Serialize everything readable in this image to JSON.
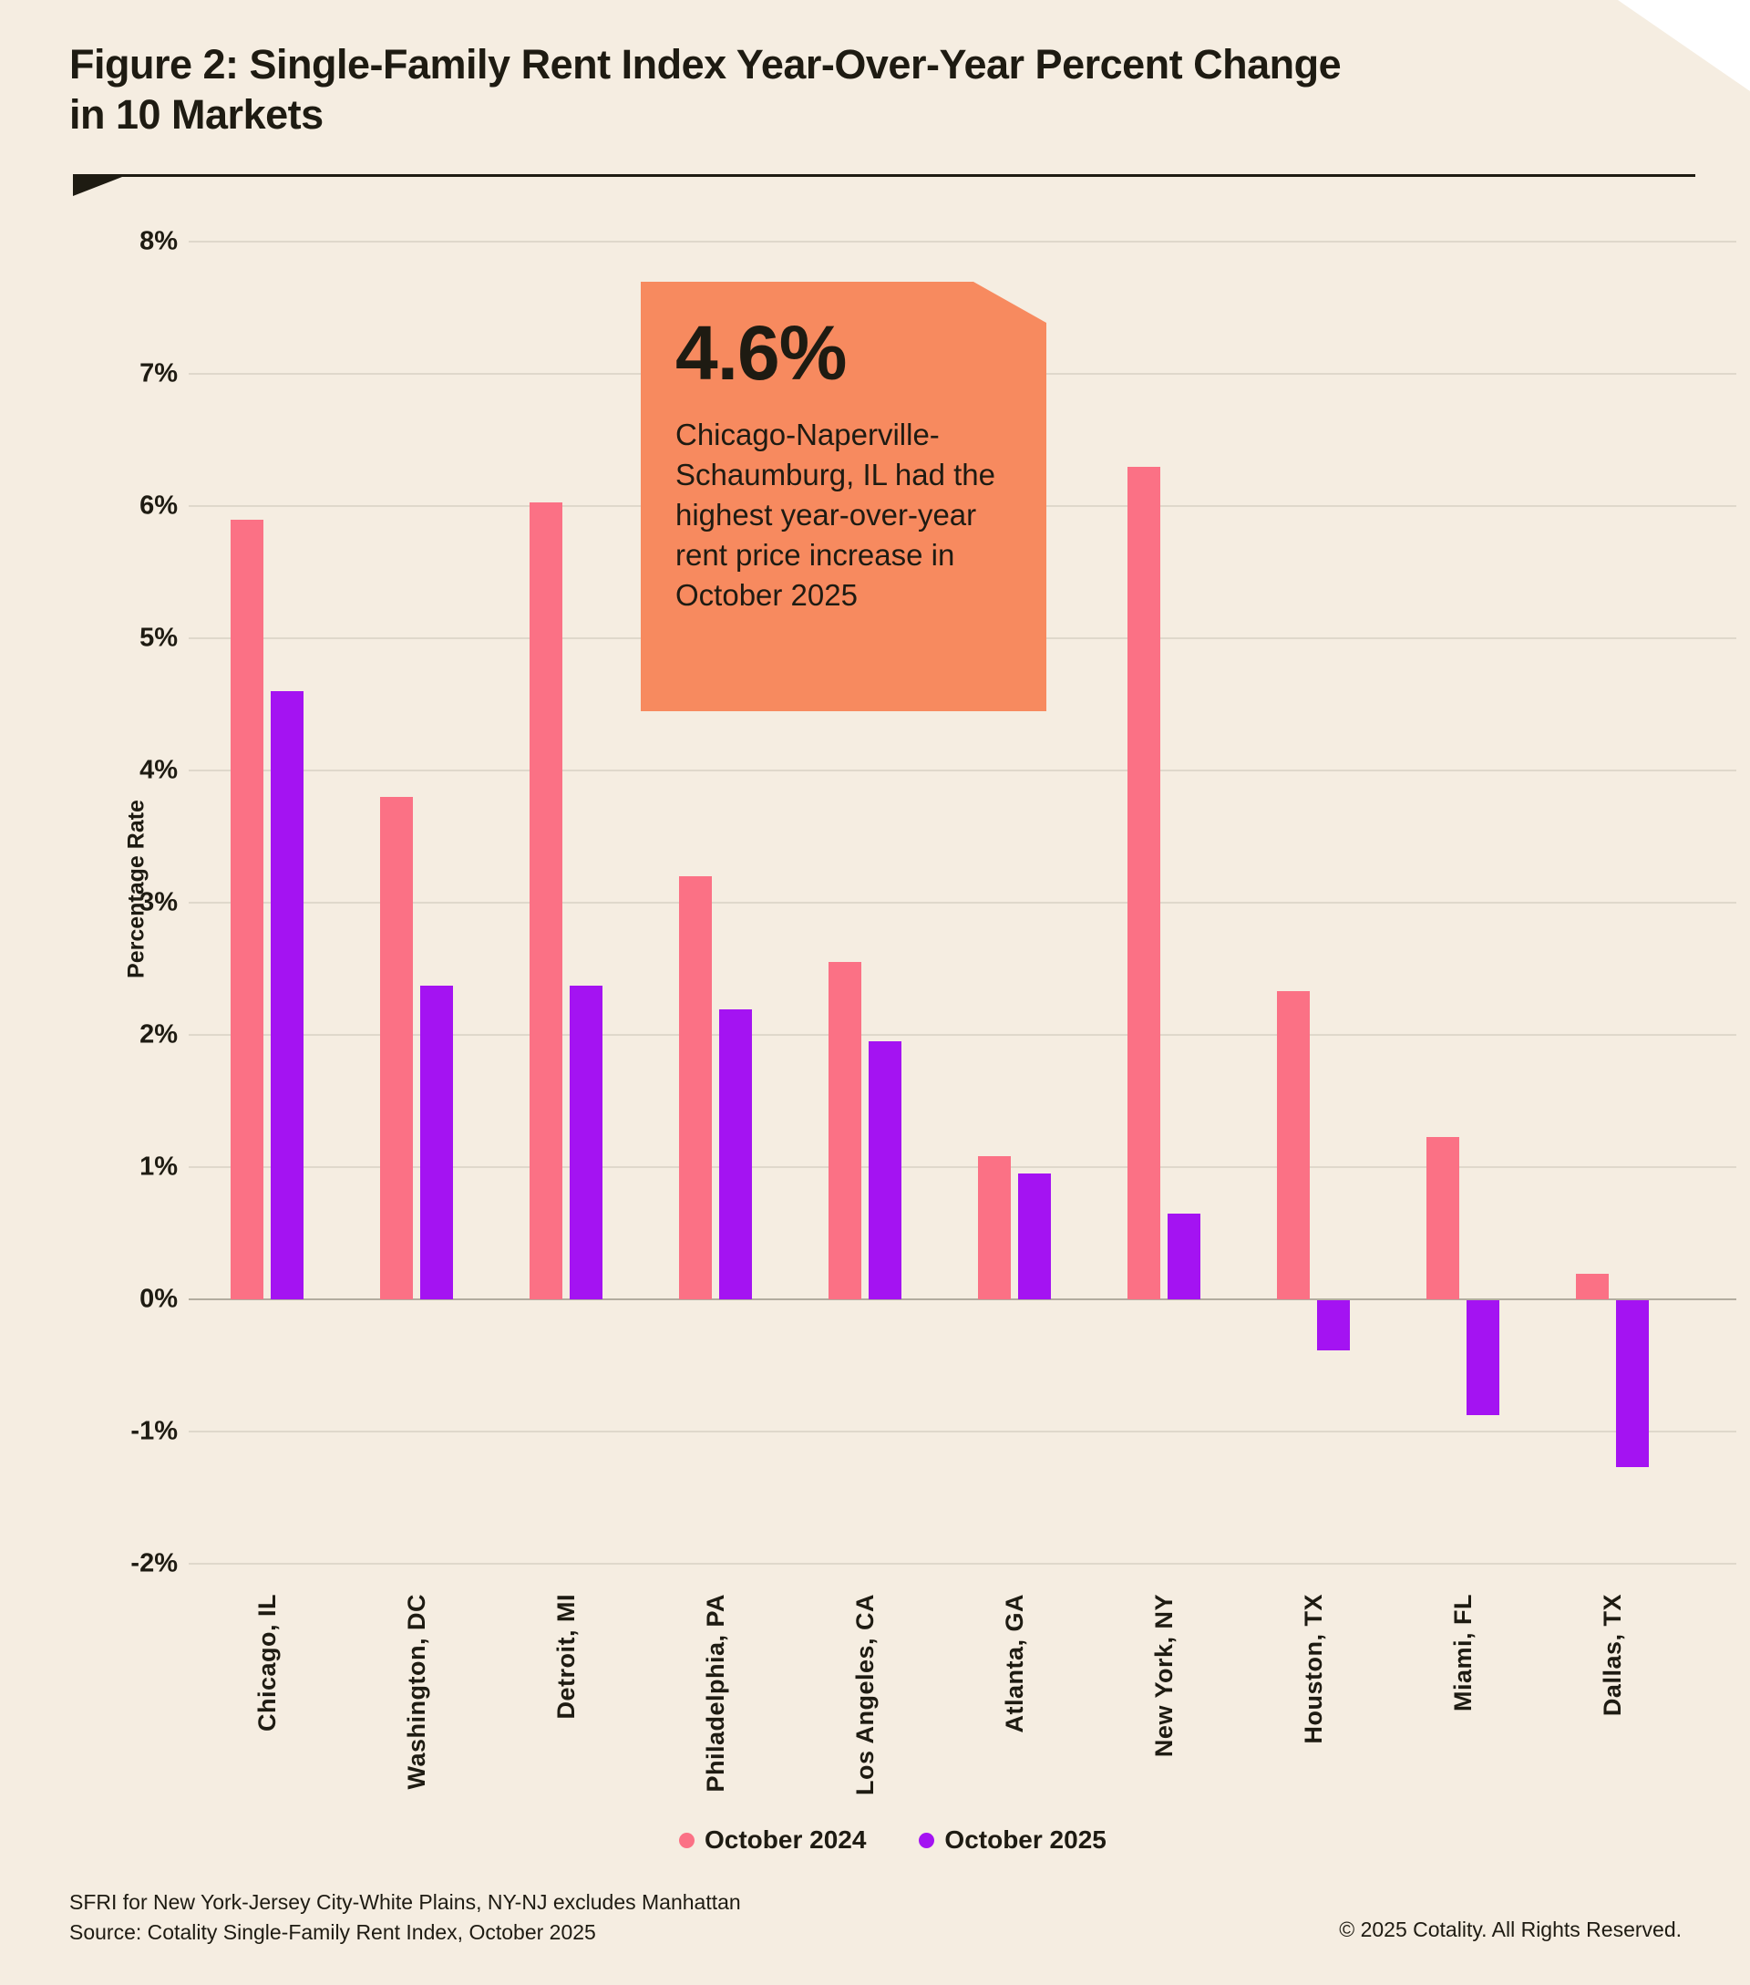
{
  "page": {
    "background_color": "#F5EDE1",
    "ink_color": "#1E1B12",
    "grid_color": "#DFD8CB",
    "zero_line_color": "#B2AC9F",
    "corner_fold_color": "#FFFFFF"
  },
  "title": "Figure 2: Single-Family Rent Index Year-Over-Year Percent Change in 10 Markets",
  "y_axis_title": "Percentage Rate",
  "callout": {
    "value": "4.6%",
    "text": "Chicago-Naperville-Schaumburg, IL had the highest year-over-year rent price increase in October 2025",
    "background_color": "#F78A5F"
  },
  "legend": [
    {
      "label": "October 2024",
      "color": "#FB7185"
    },
    {
      "label": "October 2025",
      "color": "#A413F2"
    }
  ],
  "footnotes": {
    "line1": "SFRI for New York-Jersey City-White Plains, NY-NJ excludes Manhattan",
    "line2": "Source: Cotality Single-Family Rent Index, October 2025",
    "copyright": "© 2025 Cotality. All Rights Reserved."
  },
  "chart_data": {
    "type": "bar",
    "title": "Figure 2: Single-Family Rent Index Year-Over-Year Percent Change in 10 Markets",
    "xlabel": "",
    "ylabel": "Percentage Rate",
    "ylim": [
      -2,
      8
    ],
    "y_tick_labels": [
      "8%",
      "7%",
      "6%",
      "5%",
      "4%",
      "3%",
      "2%",
      "1%",
      "0%",
      "-1%",
      "-2%"
    ],
    "y_tick_values": [
      8,
      7,
      6,
      5,
      4,
      3,
      2,
      1,
      0,
      -1,
      -2
    ],
    "grid": true,
    "legend_position": "bottom",
    "categories": [
      "Chicago, IL",
      "Washington, DC",
      "Detroit, MI",
      "Philadelphia, PA",
      "Los Angeles, CA",
      "Atlanta, GA",
      "New York, NY",
      "Houston, TX",
      "Miami, FL",
      "Dallas, TX"
    ],
    "series": [
      {
        "name": "October 2024",
        "color": "#FB7185",
        "values": [
          5.9,
          3.8,
          6.03,
          3.2,
          2.55,
          1.08,
          6.3,
          2.33,
          1.23,
          0.19
        ]
      },
      {
        "name": "October 2025",
        "color": "#A413F2",
        "values": [
          4.6,
          2.37,
          2.37,
          2.19,
          1.95,
          0.95,
          0.65,
          -0.38,
          -0.87,
          -1.26
        ]
      }
    ]
  }
}
